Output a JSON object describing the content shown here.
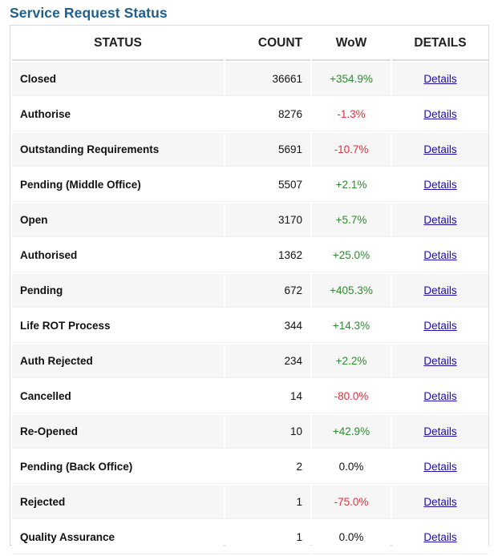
{
  "title": "Service Request Status",
  "colors": {
    "title": "#1f5f8b",
    "positive": "#2e8b2e",
    "negative": "#e0323a",
    "link": "#1a0dab"
  },
  "table": {
    "headers": {
      "status": "STATUS",
      "count": "COUNT",
      "wow": "WoW",
      "details": "DETAILS"
    },
    "rows": [
      {
        "status": "Closed",
        "count": "36661",
        "wow": "+354.9%",
        "trend": "pos",
        "details": "Details"
      },
      {
        "status": "Authorise",
        "count": "8276",
        "wow": "-1.3%",
        "trend": "neg",
        "details": "Details"
      },
      {
        "status": "Outstanding Requirements",
        "count": "5691",
        "wow": "-10.7%",
        "trend": "neg",
        "details": "Details"
      },
      {
        "status": "Pending (Middle Office)",
        "count": "5507",
        "wow": "+2.1%",
        "trend": "pos",
        "details": "Details"
      },
      {
        "status": "Open",
        "count": "3170",
        "wow": "+5.7%",
        "trend": "pos",
        "details": "Details"
      },
      {
        "status": "Authorised",
        "count": "1362",
        "wow": "+25.0%",
        "trend": "pos",
        "details": "Details"
      },
      {
        "status": "Pending",
        "count": "672",
        "wow": "+405.3%",
        "trend": "pos",
        "details": "Details"
      },
      {
        "status": "Life ROT Process",
        "count": "344",
        "wow": "+14.3%",
        "trend": "pos",
        "details": "Details"
      },
      {
        "status": "Auth Rejected",
        "count": "234",
        "wow": "+2.2%",
        "trend": "pos",
        "details": "Details"
      },
      {
        "status": "Cancelled",
        "count": "14",
        "wow": "-80.0%",
        "trend": "neg",
        "details": "Details"
      },
      {
        "status": "Re-Opened",
        "count": "10",
        "wow": "+42.9%",
        "trend": "pos",
        "details": "Details"
      },
      {
        "status": "Pending (Back Office)",
        "count": "2",
        "wow": "0.0%",
        "trend": "neu",
        "details": "Details"
      },
      {
        "status": "Rejected",
        "count": "1",
        "wow": "-75.0%",
        "trend": "neg",
        "details": "Details"
      },
      {
        "status": "Quality Assurance",
        "count": "1",
        "wow": "0.0%",
        "trend": "neu",
        "details": "Details"
      }
    ]
  }
}
